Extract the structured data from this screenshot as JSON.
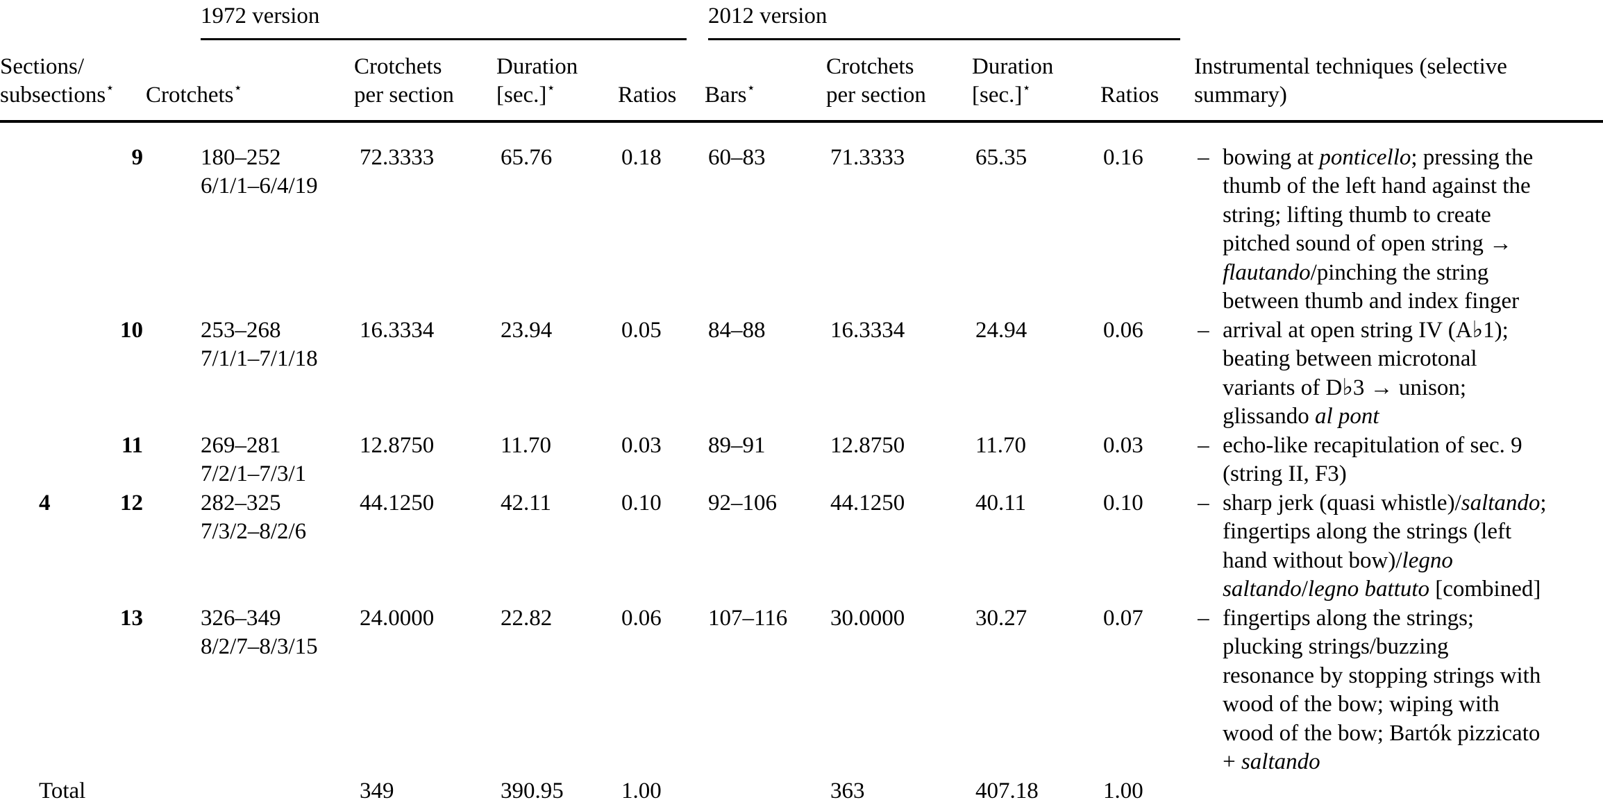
{
  "ui": {
    "star": "⋆",
    "item_dash": "–"
  },
  "versions": {
    "v1972": "1972 version",
    "v2012": "2012 version"
  },
  "headers": {
    "sections": {
      "line1": "Sections/",
      "line2": "subsections"
    },
    "crotchets": {
      "label": "Crotchets"
    },
    "crotchets_per_section": {
      "line1": "Crotchets",
      "line2": "per section"
    },
    "duration": {
      "line1": "Duration",
      "line2": "[sec.]"
    },
    "ratios": {
      "label": "Ratios"
    },
    "bars": {
      "label": "Bars"
    },
    "techniques": {
      "line1": "Instrumental techniques (selective",
      "line2": "summary)"
    }
  },
  "rows": [
    {
      "section": "",
      "subsection": "9",
      "crotchets_range": "180–252",
      "crotchets_position": "6/1/1–6/4/19",
      "crotchets_per_section_1972": "72.3333",
      "duration_1972": "65.76",
      "ratio_1972": "0.18",
      "bars_2012": "60–83",
      "crotchets_per_section_2012": "71.3333",
      "duration_2012": "65.35",
      "ratio_2012": "0.16",
      "technique_lines": [
        [
          {
            "text": "bowing at "
          },
          {
            "text": "ponticello",
            "italic": true
          },
          {
            "text": "; pressing the"
          }
        ],
        [
          {
            "text": "thumb of the left hand against the"
          }
        ],
        [
          {
            "text": "string; lifting thumb to create"
          }
        ],
        [
          {
            "text": "pitched sound of open string →"
          }
        ],
        [
          {
            "text": "flautando",
            "italic": true
          },
          {
            "text": "/pinching the string"
          }
        ],
        [
          {
            "text": "between thumb and index finger"
          }
        ]
      ]
    },
    {
      "section": "",
      "subsection": "10",
      "crotchets_range": "253–268",
      "crotchets_position": "7/1/1–7/1/18",
      "crotchets_per_section_1972": "16.3334",
      "duration_1972": "23.94",
      "ratio_1972": "0.05",
      "bars_2012": "84–88",
      "crotchets_per_section_2012": "16.3334",
      "duration_2012": "24.94",
      "ratio_2012": "0.06",
      "technique_lines": [
        [
          {
            "text": "arrival at open string IV (A♭1);"
          }
        ],
        [
          {
            "text": "beating between microtonal"
          }
        ],
        [
          {
            "text": "variants of D♭3 → unison;"
          }
        ],
        [
          {
            "text": "glissando "
          },
          {
            "text": "al pont",
            "italic": true
          }
        ]
      ]
    },
    {
      "section": "",
      "subsection": "11",
      "crotchets_range": "269–281",
      "crotchets_position": "7/2/1–7/3/1",
      "crotchets_per_section_1972": "12.8750",
      "duration_1972": "11.70",
      "ratio_1972": "0.03",
      "bars_2012": "89–91",
      "crotchets_per_section_2012": "12.8750",
      "duration_2012": "11.70",
      "ratio_2012": "0.03",
      "technique_lines": [
        [
          {
            "text": "echo-like recapitulation of sec. 9"
          }
        ],
        [
          {
            "text": "(string II, F3)"
          }
        ]
      ]
    },
    {
      "section": "4",
      "subsection": "12",
      "crotchets_range": "282–325",
      "crotchets_position": "7/3/2–8/2/6",
      "crotchets_per_section_1972": "44.1250",
      "duration_1972": "42.11",
      "ratio_1972": "0.10",
      "bars_2012": "92–106",
      "crotchets_per_section_2012": "44.1250",
      "duration_2012": "40.11",
      "ratio_2012": "0.10",
      "technique_lines": [
        [
          {
            "text": "sharp jerk (quasi whistle)/"
          },
          {
            "text": "saltando",
            "italic": true
          },
          {
            "text": ";"
          }
        ],
        [
          {
            "text": "fingertips along the strings (left"
          }
        ],
        [
          {
            "text": "hand without bow)/"
          },
          {
            "text": "legno",
            "italic": true
          }
        ],
        [
          {
            "text": "saltando",
            "italic": true
          },
          {
            "text": "/"
          },
          {
            "text": "legno battuto",
            "italic": true
          },
          {
            "text": " [combined]"
          }
        ]
      ]
    },
    {
      "section": "",
      "subsection": "13",
      "crotchets_range": "326–349",
      "crotchets_position": "8/2/7–8/3/15",
      "crotchets_per_section_1972": "24.0000",
      "duration_1972": "22.82",
      "ratio_1972": "0.06",
      "bars_2012": "107–116",
      "crotchets_per_section_2012": "30.0000",
      "duration_2012": "30.27",
      "ratio_2012": "0.07",
      "technique_lines": [
        [
          {
            "text": "fingertips along the strings;"
          }
        ],
        [
          {
            "text": "plucking strings/buzzing"
          }
        ],
        [
          {
            "text": "resonance by stopping strings with"
          }
        ],
        [
          {
            "text": "wood of the bow; wiping with"
          }
        ],
        [
          {
            "text": "wood of the bow; Bartók pizzicato"
          }
        ],
        [
          {
            "text": "+ "
          },
          {
            "text": "saltando",
            "italic": true
          }
        ]
      ]
    }
  ],
  "total": {
    "label": "Total",
    "crotchets_per_section_1972": "349",
    "duration_1972": "390.95",
    "ratio_1972": "1.00",
    "crotchets_per_section_2012": "363",
    "duration_2012": "407.18",
    "ratio_2012": "1.00"
  }
}
